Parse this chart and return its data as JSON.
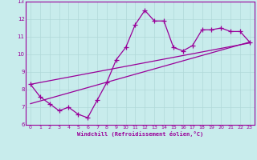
{
  "xlabel": "Windchill (Refroidissement éolien,°C)",
  "background_color": "#c8ecec",
  "line_color": "#990099",
  "grid_color": "#b0d8d8",
  "xlim": [
    -0.5,
    23.5
  ],
  "ylim": [
    6,
    13
  ],
  "xticks": [
    0,
    1,
    2,
    3,
    4,
    5,
    6,
    7,
    8,
    9,
    10,
    11,
    12,
    13,
    14,
    15,
    16,
    17,
    18,
    19,
    20,
    21,
    22,
    23
  ],
  "yticks": [
    6,
    7,
    8,
    9,
    10,
    11,
    12,
    13
  ],
  "data_x": [
    0,
    1,
    2,
    3,
    4,
    5,
    6,
    7,
    8,
    9,
    10,
    11,
    12,
    13,
    14,
    15,
    16,
    17,
    18,
    19,
    20,
    21,
    22,
    23
  ],
  "data_y": [
    8.3,
    7.6,
    7.2,
    6.8,
    7.0,
    6.6,
    6.4,
    7.4,
    8.4,
    9.7,
    10.4,
    11.7,
    12.5,
    11.9,
    11.9,
    10.4,
    10.2,
    10.5,
    11.4,
    11.4,
    11.5,
    11.3,
    11.3,
    10.7
  ],
  "reg_line1_x": [
    0,
    23
  ],
  "reg_line1_y": [
    7.2,
    10.7
  ],
  "reg_line2_x": [
    0,
    23
  ],
  "reg_line2_y": [
    8.3,
    10.65
  ]
}
